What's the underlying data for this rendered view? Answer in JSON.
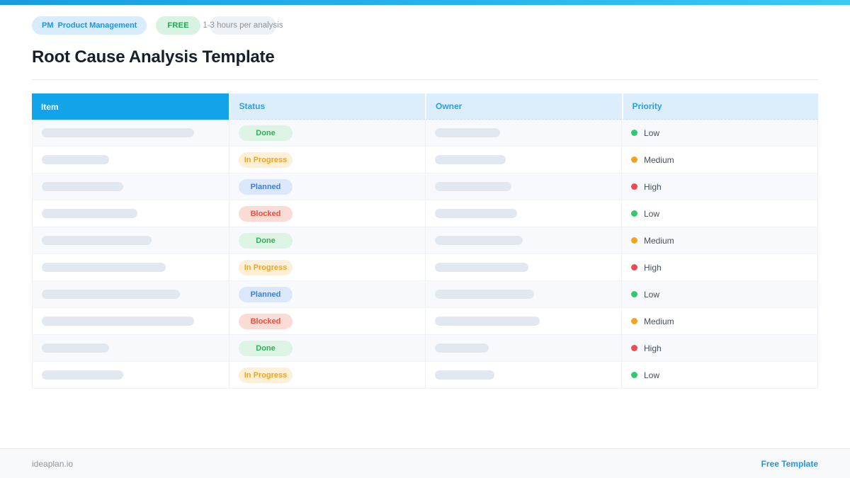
{
  "header": {
    "category_prefix": "PM",
    "category_label": "Product Management",
    "free_badge": "FREE",
    "duration_label": "1-3 hours per analysis",
    "title": "Root Cause Analysis Template"
  },
  "table": {
    "columns": [
      "Item",
      "Status",
      "Owner",
      "Priority"
    ],
    "rows": [
      {
        "item_width": 215,
        "status": "Done",
        "owner_width": 92,
        "priority": "Low"
      },
      {
        "item_width": 95,
        "status": "In Progress",
        "owner_width": 100,
        "priority": "Medium"
      },
      {
        "item_width": 115,
        "status": "Planned",
        "owner_width": 108,
        "priority": "High"
      },
      {
        "item_width": 135,
        "status": "Blocked",
        "owner_width": 116,
        "priority": "Low"
      },
      {
        "item_width": 155,
        "status": "Done",
        "owner_width": 124,
        "priority": "Medium"
      },
      {
        "item_width": 175,
        "status": "In Progress",
        "owner_width": 132,
        "priority": "High"
      },
      {
        "item_width": 195,
        "status": "Planned",
        "owner_width": 140,
        "priority": "Low"
      },
      {
        "item_width": 215,
        "status": "Blocked",
        "owner_width": 148,
        "priority": "Medium"
      },
      {
        "item_width": 95,
        "status": "Done",
        "owner_width": 76,
        "priority": "High"
      },
      {
        "item_width": 115,
        "status": "In Progress",
        "owner_width": 84,
        "priority": "Low"
      }
    ]
  },
  "status_styles": {
    "Done": {
      "bg": "#ddf3e4",
      "fg": "#2fae5e"
    },
    "In Progress": {
      "bg": "#fdf0d8",
      "fg": "#f5a31a"
    },
    "Planned": {
      "bg": "#dbe8fb",
      "fg": "#3d7fd9"
    },
    "Blocked": {
      "bg": "#fadcd7",
      "fg": "#e8503c"
    }
  },
  "priority_styles": {
    "Low": "#2dcb6e",
    "Medium": "#f5a31a",
    "High": "#ee4b55"
  },
  "colors": {
    "accent_blue": "#12a3e8",
    "header_light_bg": "#dceefb",
    "topbar_gradient_start": "#179ce2",
    "topbar_gradient_end": "#3ac9f5"
  },
  "footer": {
    "site": "ideaplan.io",
    "link": "Free Template"
  }
}
